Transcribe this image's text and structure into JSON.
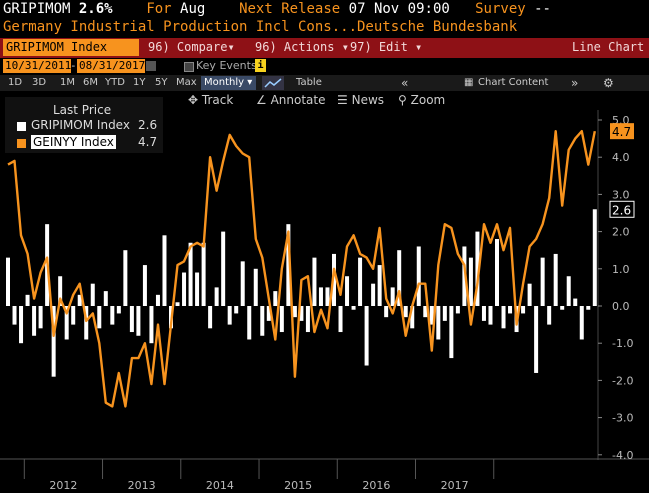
{
  "header": {
    "ticker": "GRIPIMOM",
    "value": "2.6%",
    "for_label": "For",
    "for_value": "Aug",
    "next_release_label": "Next Release",
    "next_release_value": "07 Nov 09:00",
    "survey_label": "Survey",
    "survey_value": "--",
    "subtitle": "Germany Industrial Production Incl Cons...Deutsche Bundesbank"
  },
  "redbar": {
    "ticker_box": "GRIPIMOM Index",
    "compare": "96) Compare",
    "actions": "96) Actions",
    "edit": "97) Edit",
    "chart_type": "Line Chart",
    "compare_glyph": "▾",
    "actions_glyph": "▾",
    "edit_glyph": "▾"
  },
  "datebar": {
    "start_date": "10/31/2011",
    "end_date": "08/31/2017",
    "key_events": "Key Events",
    "info_badge": "i"
  },
  "toolbar": {
    "periods": [
      "1D",
      "3D",
      "1M",
      "6M",
      "YTD",
      "1Y",
      "5Y",
      "Max"
    ],
    "frequency": "Monthly",
    "table": "Table",
    "chart_content": "Chart Content",
    "gear": "⚙"
  },
  "tools": {
    "track": "Track",
    "annotate": "Annotate",
    "news": "News",
    "zoom": "Zoom"
  },
  "legend": {
    "title": "Last Price",
    "items": [
      {
        "name": "GRIPIMOM Index",
        "value": "2.6",
        "color": "#ffffff"
      },
      {
        "name": "GEINYY Index",
        "value": "4.7",
        "color": "#f7931e"
      }
    ]
  },
  "last_labels": {
    "orange": "4.7",
    "white": "2.6"
  },
  "colors": {
    "orange": "#f7931e",
    "redbar": "#8e1116",
    "white": "#ffffff"
  },
  "chart_data": {
    "type": "bar",
    "title": "",
    "xlabel": "",
    "ylabel": "",
    "ylim": [
      -4.0,
      5.0
    ],
    "yticks": [
      -4.0,
      -3.0,
      -2.0,
      -1.0,
      0.0,
      1.0,
      2.0,
      3.0,
      4.0,
      5.0
    ],
    "ytick_labels": [
      "-4.0",
      "-3.0",
      "-2.0",
      "-1.0",
      "0.0",
      "1.0",
      "2.0",
      "3.0",
      "4.0",
      "5.0"
    ],
    "x_labels": [
      "2012",
      "2013",
      "2014",
      "2015",
      "2016",
      "2017"
    ],
    "start_month": "2011-10",
    "series": [
      {
        "name": "GRIPIMOM Index",
        "type": "bar",
        "color": "#ffffff",
        "values": [
          1.3,
          -0.5,
          -1.0,
          0.3,
          -0.8,
          -0.6,
          2.2,
          -1.9,
          0.8,
          -0.9,
          -0.5,
          0.3,
          -0.9,
          0.6,
          -0.6,
          0.4,
          -0.5,
          -0.2,
          1.5,
          -0.7,
          -0.8,
          1.1,
          -1.0,
          0.3,
          1.9,
          -0.6,
          0.1,
          0.9,
          1.7,
          0.9,
          1.7,
          -0.6,
          0.5,
          2.0,
          -0.5,
          -0.2,
          1.2,
          -0.9,
          1.0,
          -0.8,
          -0.4,
          0.4,
          -0.7,
          2.2,
          -0.3,
          -0.4,
          -0.7,
          1.3,
          0.5,
          0.5,
          1.4,
          -0.7,
          0.8,
          -0.1,
          1.3,
          -1.6,
          0.6,
          1.1,
          -0.3,
          0.5,
          1.5,
          -0.3,
          -0.6,
          1.6,
          -0.3,
          -0.5,
          -0.9,
          -0.4,
          -1.4,
          -0.2,
          1.6,
          1.3,
          2.0,
          -0.4,
          -0.5,
          1.8,
          -0.6,
          -0.2,
          -0.7,
          -0.2,
          0.6,
          -1.8,
          1.3,
          -0.5,
          1.4,
          -0.1,
          0.8,
          0.2,
          -0.9,
          -0.1,
          2.6
        ]
      },
      {
        "name": "GEINYY Index",
        "type": "line",
        "color": "#f7931e",
        "values": [
          3.8,
          3.9,
          1.9,
          1.4,
          0.2,
          0.9,
          1.3,
          -0.8,
          0.2,
          -0.2,
          0.3,
          0.6,
          -0.4,
          -0.2,
          -1.0,
          -2.6,
          -2.7,
          -1.8,
          -2.7,
          -1.4,
          -1.4,
          -1.0,
          -2.1,
          -0.5,
          -2.1,
          -0.5,
          1.1,
          1.2,
          1.6,
          1.7,
          1.6,
          4.0,
          3.1,
          3.9,
          4.6,
          4.3,
          4.1,
          4.0,
          1.8,
          1.3,
          0.2,
          -0.9,
          1.0,
          2.0,
          -1.9,
          0.7,
          0.8,
          -0.7,
          -0.1,
          -0.6,
          1.0,
          0.3,
          1.6,
          1.9,
          1.4,
          1.3,
          1.0,
          2.1,
          0.2,
          -0.2,
          0.4,
          -0.8,
          0.0,
          0.6,
          0.6,
          -1.2,
          1.1,
          2.2,
          2.1,
          1.4,
          1.1,
          -0.5,
          0.6,
          2.2,
          1.7,
          2.2,
          1.5,
          2.1,
          -0.5,
          0.6,
          1.6,
          1.8,
          2.2,
          2.9,
          4.7,
          2.7,
          4.2,
          4.5,
          4.7,
          3.8,
          4.7
        ]
      }
    ],
    "grid": false,
    "legend": "top-left"
  }
}
